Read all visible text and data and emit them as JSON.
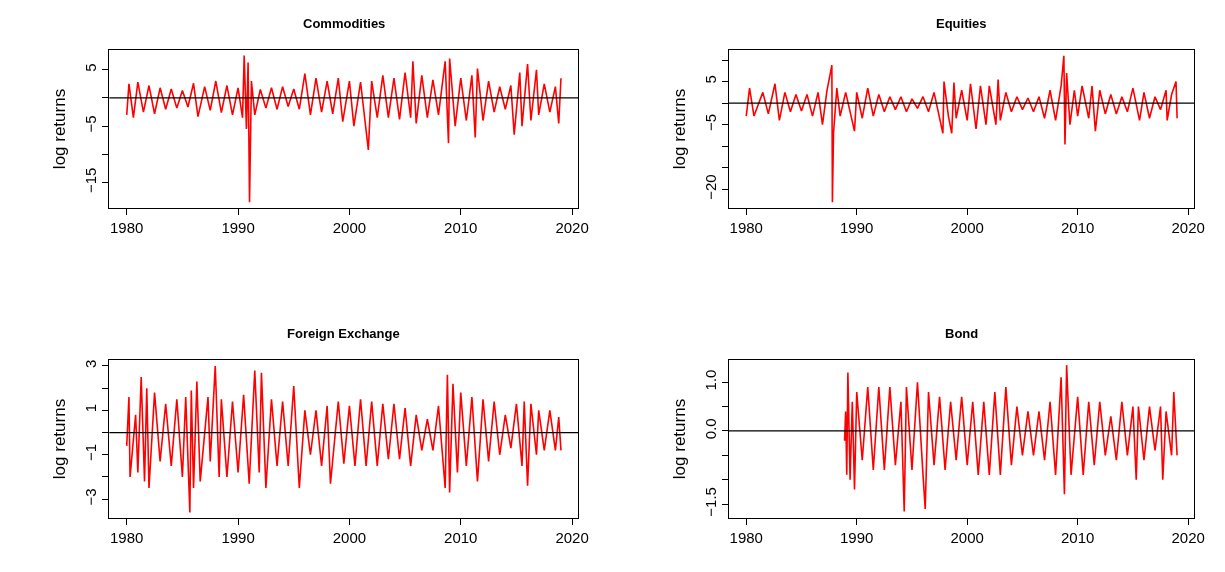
{
  "chart_data": [
    {
      "type": "line",
      "title": "Commodities",
      "ylabel": "log returns",
      "xlim": [
        1978.44,
        2020.56
      ],
      "xticks": [
        1980,
        1990,
        2000,
        2010,
        2020
      ],
      "ylim": [
        -19.54,
        8.54
      ],
      "yticks": [
        5,
        {
          "value": 0,
          "label": null
        },
        -5,
        {
          "value": -10,
          "label": null
        },
        -15
      ],
      "marker": "none",
      "line_style": "solid",
      "ref_lines": [
        {
          "axis": "y",
          "value": 0,
          "label": null,
          "color": "#000000"
        }
      ],
      "series": [
        {
          "color": "#ff0000",
          "x": [
            1980,
            1980.2,
            1980.6,
            1981,
            1981.5,
            1982,
            1982.5,
            1983,
            1983.5,
            1984,
            1984.5,
            1985,
            1985.5,
            1986,
            1986.4,
            1987,
            1987.5,
            1988,
            1988.5,
            1989,
            1989.5,
            1990,
            1990.4,
            1990.55,
            1990.75,
            1990.9,
            1991.03,
            1991.2,
            1991.5,
            1992,
            1992.5,
            1993,
            1993.5,
            1994,
            1994.5,
            1995,
            1995.5,
            1996,
            1996.5,
            1997,
            1997.5,
            1998,
            1998.5,
            1999,
            1999.4,
            2000,
            2000.4,
            2001,
            2001.7,
            2002,
            2002.5,
            2003,
            2003.5,
            2004,
            2004.5,
            2005,
            2005.5,
            2005.7,
            2006,
            2006.5,
            2007,
            2007.5,
            2008,
            2008.6,
            2008.9,
            2009.0,
            2009.5,
            2010,
            2010.5,
            2011,
            2011.3,
            2011.5,
            2012,
            2012.5,
            2013,
            2013.5,
            2014,
            2014.5,
            2014.8,
            2015.3,
            2015.5,
            2016,
            2016.3,
            2016.8,
            2017,
            2017.5,
            2018,
            2018.5,
            2018.8,
            2019
          ],
          "values": [
            -3,
            2.5,
            -3.5,
            2.8,
            -2.5,
            2.2,
            -2.8,
            1.8,
            -2.0,
            1.6,
            -1.8,
            1.3,
            -1.6,
            2.6,
            -3.3,
            2.0,
            -2.2,
            3.0,
            -2.6,
            2.2,
            -3.0,
            1.8,
            -3.5,
            7.5,
            -5.5,
            6.3,
            -18.5,
            3.0,
            -3.0,
            1.5,
            -1.8,
            1.8,
            -2.0,
            2.0,
            -1.5,
            1.6,
            -2.0,
            4.3,
            -3.0,
            3.5,
            -2.5,
            3.0,
            -2.8,
            3.5,
            -4.2,
            3.0,
            -5.0,
            2.8,
            -9.2,
            3.0,
            -3.5,
            4.0,
            -3.5,
            3.5,
            -3.8,
            4.5,
            -3.5,
            6.5,
            -4.5,
            4.0,
            -3.5,
            3.2,
            -3.0,
            6.5,
            -8.0,
            7.0,
            -5.0,
            3.5,
            -4.0,
            4.0,
            -7.0,
            5.2,
            -4.0,
            3.0,
            -2.5,
            2.0,
            -2.0,
            2.2,
            -6.5,
            4.5,
            -5.0,
            6.0,
            -4.0,
            5.0,
            -3.0,
            2.5,
            -2.5,
            2.0,
            -4.5,
            3.5
          ]
        }
      ]
    },
    {
      "type": "line",
      "title": "Equities",
      "ylabel": "log returns",
      "xlim": [
        1978.44,
        2020.56
      ],
      "xticks": [
        1980,
        1990,
        2000,
        2010,
        2020
      ],
      "ylim": [
        -24.4,
        12.4
      ],
      "yticks": [
        {
          "value": 10,
          "label": null
        },
        5,
        {
          "value": 0,
          "label": null
        },
        -5,
        {
          "value": -10,
          "label": null
        },
        {
          "value": -15,
          "label": null
        },
        -20
      ],
      "marker": "none",
      "line_style": "solid",
      "ref_lines": [
        {
          "axis": "y",
          "value": 0,
          "label": null,
          "color": "#000000"
        }
      ],
      "series": [
        {
          "color": "#ff0000",
          "x": [
            1980,
            1980.3,
            1980.7,
            1981.5,
            1982,
            1982.6,
            1983,
            1983.5,
            1984,
            1984.5,
            1985,
            1985.5,
            1986,
            1986.5,
            1986.9,
            1987.3,
            1987.75,
            1987.8,
            1987.9,
            1988.2,
            1988.5,
            1989,
            1989.8,
            1990,
            1990.5,
            1991,
            1991.5,
            1992,
            1992.5,
            1993,
            1993.5,
            1994,
            1994.5,
            1995,
            1995.5,
            1996,
            1996.5,
            1997,
            1997.8,
            1997.9,
            1998.3,
            1998.6,
            1998.8,
            1999,
            1999.5,
            2000,
            2000.3,
            2000.8,
            2001.2,
            2001.7,
            2002,
            2002.6,
            2002.8,
            2003,
            2003.5,
            2004,
            2004.5,
            2005,
            2005.5,
            2006,
            2006.5,
            2007,
            2007.5,
            2008,
            2008.5,
            2008.75,
            2008.85,
            2009.0,
            2009.3,
            2009.7,
            2010,
            2010.4,
            2011,
            2011.3,
            2011.6,
            2012,
            2012.5,
            2013,
            2013.5,
            2014,
            2014.5,
            2015,
            2015.6,
            2016,
            2016.5,
            2017,
            2017.5,
            2018,
            2018.1,
            2018.5,
            2018.9,
            2019
          ],
          "values": [
            -3,
            3.5,
            -3.0,
            2.5,
            -2.5,
            4.5,
            -4.0,
            2.5,
            -2.0,
            2.0,
            -1.8,
            2.0,
            -3.0,
            2.5,
            -5.0,
            2.8,
            8.8,
            -23,
            -7.0,
            3.5,
            -3.0,
            2.5,
            -6.5,
            2.5,
            -3.5,
            3.5,
            -3.0,
            2.0,
            -2.0,
            1.5,
            -1.5,
            1.5,
            -2.0,
            1.0,
            -1.2,
            1.5,
            -2.0,
            2.5,
            -7.0,
            5.0,
            -3.0,
            -7.0,
            4.8,
            -3.5,
            3.0,
            -4.0,
            4.5,
            -6.0,
            4.0,
            -5.0,
            4.0,
            -5.0,
            5.5,
            -4.0,
            2.5,
            -2.0,
            1.5,
            -1.5,
            1.2,
            -2.0,
            1.5,
            -3.5,
            3.0,
            -4.0,
            4.0,
            11.0,
            -9.6,
            7.0,
            -5.0,
            3.0,
            -3.0,
            4.0,
            -3.5,
            4.0,
            -6.5,
            3.0,
            -2.5,
            2.0,
            -2.5,
            1.5,
            -2.0,
            3.5,
            -4.0,
            2.5,
            -3.5,
            1.5,
            -1.5,
            3.0,
            -4.0,
            2.0,
            5.0,
            -3.5
          ]
        }
      ]
    },
    {
      "type": "line",
      "title": "Foreign Exchange",
      "ylabel": "log returns",
      "xlim": [
        1978.44,
        2020.56
      ],
      "xticks": [
        1980,
        1990,
        2000,
        2010,
        2020
      ],
      "ylim": [
        -3.86,
        3.28
      ],
      "yticks": [
        3,
        {
          "value": 2,
          "label": null
        },
        1,
        {
          "value": 0,
          "label": null
        },
        -1,
        {
          "value": -2,
          "label": null
        },
        -3
      ],
      "marker": "none",
      "line_style": "solid",
      "ref_lines": [
        {
          "axis": "y",
          "value": 0,
          "label": null,
          "color": "#000000"
        }
      ],
      "series": [
        {
          "color": "#ff0000",
          "x": [
            1980,
            1980.1,
            1980.2,
            1980.3,
            1980.8,
            1981,
            1981.3,
            1981.6,
            1981.8,
            1982,
            1982.5,
            1983,
            1983.5,
            1984,
            1984.5,
            1985,
            1985.3,
            1985.67,
            1985.8,
            1986,
            1986.3,
            1986.6,
            1987.3,
            1987.5,
            1987.95,
            1988.3,
            1988.5,
            1989,
            1989.5,
            1990,
            1990.5,
            1991,
            1991.5,
            1991.9,
            1992.1,
            1992.5,
            1993,
            1993.5,
            1994,
            1994.5,
            1995,
            1995.5,
            1996,
            1996.5,
            1997,
            1997.5,
            1998,
            1998.3,
            1999,
            1999.5,
            2000,
            2000.5,
            2001,
            2001.5,
            2002,
            2002.5,
            2003,
            2003.5,
            2004,
            2004.5,
            2005,
            2005.5,
            2006,
            2006.5,
            2007,
            2007.5,
            2008,
            2008.6,
            2008.8,
            2009,
            2009.3,
            2009.7,
            2010,
            2010.5,
            2011,
            2011.5,
            2012,
            2012.5,
            2013,
            2013.5,
            2014,
            2014.5,
            2015,
            2015.5,
            2015.7,
            2016,
            2016.3,
            2016.8,
            2017,
            2017.5,
            2018,
            2018.5,
            2018.8,
            2019
          ],
          "values": [
            -0.6,
            0.5,
            1.6,
            -2.0,
            0.8,
            -1.8,
            2.5,
            -2.2,
            2.0,
            -2.5,
            1.8,
            -1.3,
            1.3,
            -1.5,
            1.5,
            -2.0,
            1.6,
            -3.6,
            1.9,
            -2.5,
            2.3,
            -2.2,
            1.6,
            -1.3,
            3.0,
            -2.0,
            1.5,
            -2.0,
            1.4,
            -1.8,
            1.7,
            -2.3,
            2.8,
            -1.8,
            2.7,
            -2.5,
            1.5,
            -1.5,
            1.4,
            -1.5,
            2.1,
            -2.5,
            1.0,
            -1.0,
            1.0,
            -1.5,
            1.2,
            -2.3,
            1.4,
            -1.4,
            1.2,
            -1.5,
            1.5,
            -1.5,
            1.4,
            -1.5,
            1.3,
            -1.2,
            1.3,
            -1.2,
            1.1,
            -1.5,
            0.8,
            -0.8,
            0.6,
            -0.8,
            1.2,
            -2.5,
            2.6,
            -2.7,
            2.2,
            -1.8,
            1.8,
            -1.5,
            1.6,
            -2.2,
            1.5,
            -1.3,
            1.4,
            -1.0,
            0.8,
            -0.7,
            1.3,
            -1.5,
            1.4,
            -2.4,
            1.3,
            -1.0,
            1.0,
            -0.8,
            1.0,
            -0.8,
            0.7,
            -0.8
          ]
        }
      ]
    },
    {
      "type": "line",
      "title": "Bond",
      "ylabel": "log returns",
      "xlim": [
        1978.44,
        2020.56
      ],
      "xticks": [
        1980,
        1990,
        2000,
        2010,
        2020
      ],
      "ylim": [
        -1.79,
        1.46
      ],
      "yticks": [
        {
          "value": 1.0,
          "label": "1.0"
        },
        {
          "value": 0.5,
          "label": null
        },
        {
          "value": 0.0,
          "label": "0.0"
        },
        {
          "value": -0.5,
          "label": null
        },
        {
          "value": -1.0,
          "label": null
        },
        -1.5
      ],
      "marker": "none",
      "line_style": "solid",
      "ref_lines": [
        {
          "axis": "y",
          "value": 0,
          "label": null,
          "color": "#000000"
        }
      ],
      "series": [
        {
          "color": "#ff0000",
          "x": [
            1988.9,
            1989,
            1989.1,
            1989.2,
            1989.4,
            1989.6,
            1989.8,
            1990,
            1990.5,
            1991,
            1991.5,
            1992,
            1992.5,
            1993,
            1993.5,
            1994,
            1994.3,
            1994.5,
            1995,
            1995.5,
            1996,
            1996.2,
            1996.5,
            1997,
            1997.5,
            1998,
            1998.5,
            1999,
            1999.5,
            2000,
            2000.5,
            2001,
            2001.5,
            2002,
            2002.5,
            2003,
            2003.5,
            2004,
            2004.5,
            2005,
            2005.5,
            2006,
            2006.5,
            2007,
            2007.5,
            2008,
            2008.5,
            2008.8,
            2009.0,
            2009.4,
            2010,
            2010.5,
            2011,
            2011.5,
            2012,
            2012.5,
            2013,
            2013.5,
            2014,
            2014.5,
            2015,
            2015.3,
            2015.5,
            2016,
            2016.5,
            2017,
            2017.5,
            2017.7,
            2018,
            2018.5,
            2018.7,
            2019
          ],
          "values": [
            -0.2,
            0.4,
            -0.9,
            1.2,
            -1.0,
            0.6,
            -1.2,
            0.8,
            -0.6,
            0.9,
            -0.8,
            0.9,
            -0.8,
            0.9,
            -0.7,
            0.6,
            -1.65,
            0.9,
            -0.8,
            1.0,
            -0.9,
            -1.6,
            0.8,
            -0.7,
            0.7,
            -0.8,
            0.6,
            -0.6,
            0.7,
            -0.7,
            0.6,
            -0.9,
            0.6,
            -0.9,
            0.8,
            -0.9,
            0.9,
            -0.7,
            0.5,
            -0.5,
            0.4,
            -0.5,
            0.4,
            -0.6,
            0.6,
            -0.9,
            1.1,
            -1.3,
            1.35,
            -0.9,
            0.7,
            -0.9,
            0.6,
            -0.7,
            0.6,
            -0.5,
            0.3,
            -0.6,
            0.6,
            -0.5,
            0.5,
            -1.0,
            0.5,
            -0.6,
            0.5,
            -0.4,
            0.5,
            -1.0,
            0.4,
            -0.5,
            0.8,
            -0.5
          ]
        }
      ]
    }
  ]
}
